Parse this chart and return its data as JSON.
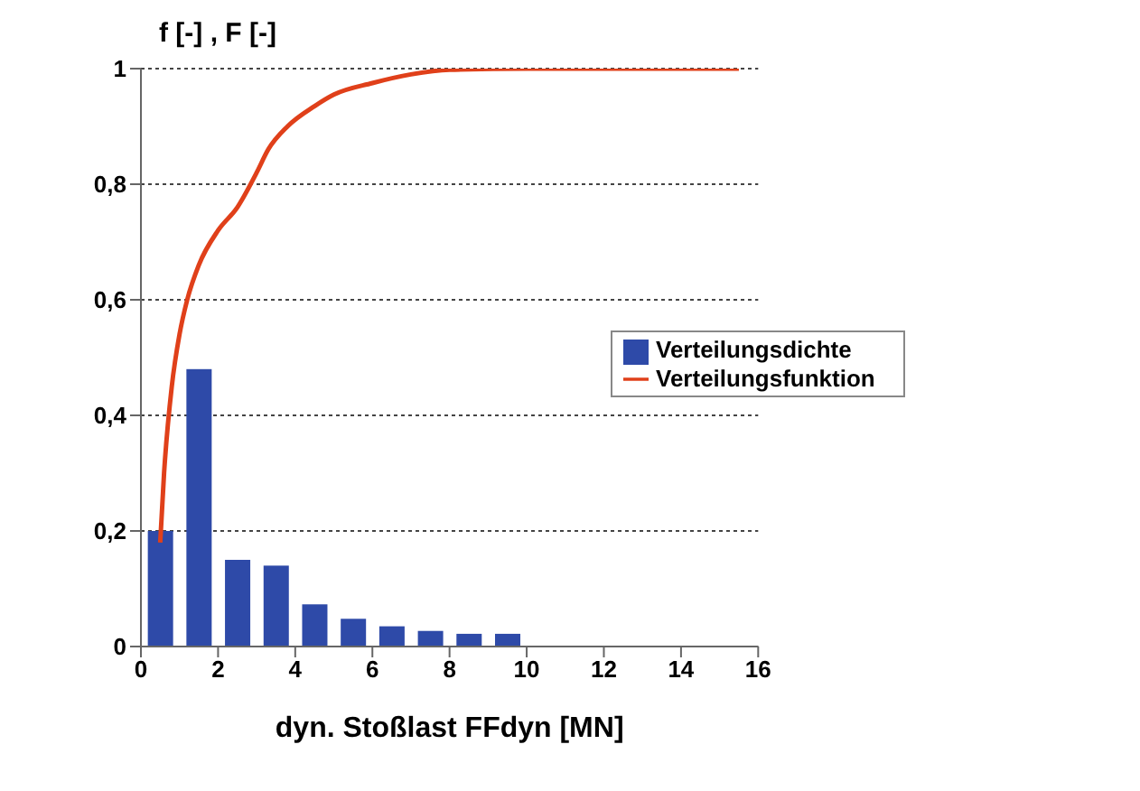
{
  "chart_data": {
    "type": "bar",
    "ylabel": "f [-] , F [-]",
    "xlabel": "dyn. Stoßlast FFdyn [MN]",
    "xlim": [
      0,
      16
    ],
    "xticks": [
      0,
      2,
      4,
      6,
      8,
      10,
      12,
      14,
      16
    ],
    "ylim": [
      0,
      1
    ],
    "yticks": [
      0,
      {
        "value": 0.2,
        "label": "0,2"
      },
      {
        "value": 0.4,
        "label": "0,4"
      },
      {
        "value": 0.6,
        "label": "0,6"
      },
      {
        "value": 0.8,
        "label": "0,8"
      },
      1
    ],
    "grid": "y",
    "legend": "right",
    "series": [
      {
        "name": "Verteilungsdichte",
        "color": "#2e4aa8",
        "x": [
          0.5,
          1.5,
          2.5,
          3.5,
          4.5,
          5.5,
          6.5,
          7.5,
          8.5,
          9.5
        ],
        "values": [
          0.2,
          0.48,
          0.15,
          0.14,
          0.073,
          0.048,
          0.035,
          0.027,
          0.022,
          0.022
        ]
      },
      {
        "name": "Verteilungsfunktion",
        "type": "line",
        "color": "#e0401a",
        "x": [
          0.5,
          0.6,
          0.8,
          1,
          1.2,
          1.5,
          2,
          2.5,
          3,
          3.3,
          3.8,
          4.5,
          5,
          6,
          7,
          8,
          10,
          12,
          15.5
        ],
        "values": [
          0.18,
          0.3,
          0.45,
          0.54,
          0.6,
          0.66,
          0.72,
          0.76,
          0.82,
          0.86,
          0.9,
          0.935,
          0.955,
          0.975,
          0.99,
          0.998,
          1,
          1,
          1
        ]
      }
    ]
  }
}
